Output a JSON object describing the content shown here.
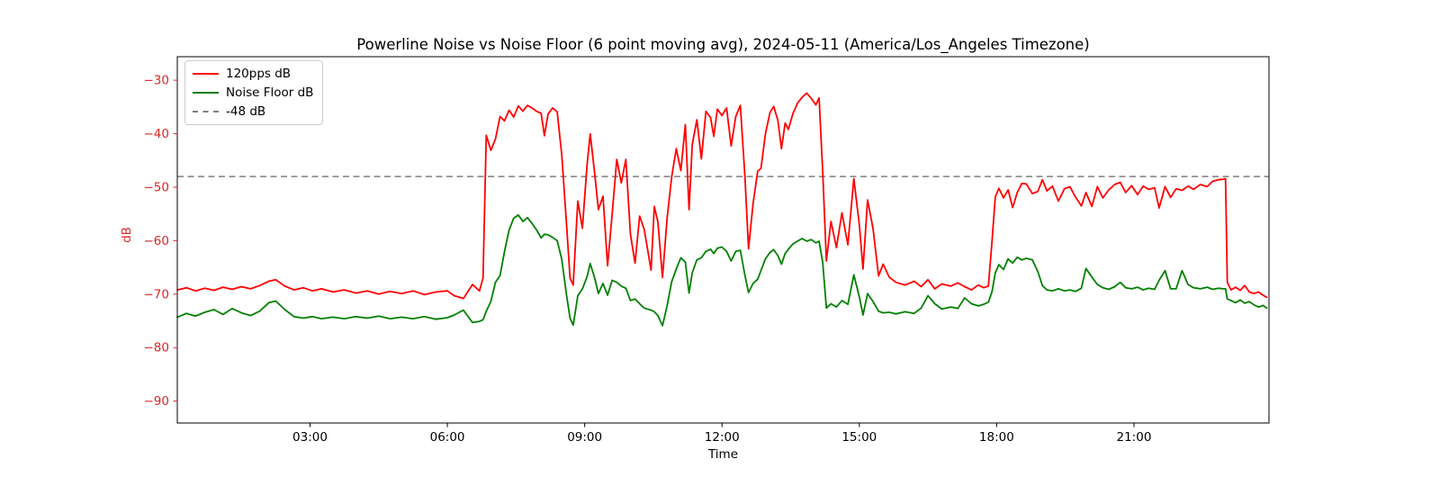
{
  "title": "Powerline Noise vs Noise Floor (6 point moving avg), 2024-05-11 (America/Los_Angeles Timezone)",
  "legend": {
    "items": [
      {
        "label": "120pps dB",
        "color": "#ff0000",
        "line_style": "solid"
      },
      {
        "label": "Noise Floor dB",
        "color": "#008000",
        "line_style": "solid"
      },
      {
        "label": "-48 dB",
        "color": "#7f7f7f",
        "line_style": "dashed"
      }
    ]
  },
  "colors": {
    "red_series": "#ff0000",
    "green_series": "#008000",
    "threshold": "#7f7f7f",
    "y_tick_text": "#d62728",
    "x_tick_text": "#000000",
    "axis": "#000000"
  },
  "chart_data": {
    "type": "line",
    "title": "Powerline Noise vs Noise Floor (6 point moving avg), 2024-05-11 (America/Los_Angeles Timezone)",
    "xlabel": "Time",
    "ylabel": "dB",
    "xlim_hours": [
      0.1,
      23.95
    ],
    "ylim": [
      -94.1,
      -25.6
    ],
    "grid": false,
    "legend_position": "upper left",
    "x_ticks": [
      {
        "hour": 3,
        "label": "03:00"
      },
      {
        "hour": 6,
        "label": "06:00"
      },
      {
        "hour": 9,
        "label": "09:00"
      },
      {
        "hour": 12,
        "label": "12:00"
      },
      {
        "hour": 15,
        "label": "15:00"
      },
      {
        "hour": 18,
        "label": "18:00"
      },
      {
        "hour": 21,
        "label": "21:00"
      }
    ],
    "y_ticks": [
      {
        "value": -30,
        "label": "−30"
      },
      {
        "value": -40,
        "label": "−40"
      },
      {
        "value": -50,
        "label": "−50"
      },
      {
        "value": -60,
        "label": "−60"
      },
      {
        "value": -70,
        "label": "−70"
      },
      {
        "value": -80,
        "label": "−80"
      },
      {
        "value": -90,
        "label": "−90"
      }
    ],
    "threshold": {
      "value": -48,
      "label": "-48 dB",
      "color": "#7f7f7f",
      "style": "dashed"
    },
    "x_hours": [
      0.1,
      0.3,
      0.5,
      0.7,
      0.9,
      1.1,
      1.3,
      1.5,
      1.7,
      1.9,
      2.1,
      2.25,
      2.45,
      2.65,
      2.85,
      3.05,
      3.25,
      3.5,
      3.75,
      4.0,
      4.25,
      4.5,
      4.75,
      5.0,
      5.25,
      5.5,
      5.75,
      6.0,
      6.15,
      6.35,
      6.55,
      6.7,
      6.78,
      6.85,
      6.95,
      7.05,
      7.15,
      7.25,
      7.35,
      7.45,
      7.55,
      7.65,
      7.75,
      7.85,
      7.95,
      8.05,
      8.12,
      8.2,
      8.3,
      8.4,
      8.5,
      8.6,
      8.68,
      8.75,
      8.85,
      8.95,
      9.05,
      9.12,
      9.22,
      9.3,
      9.4,
      9.5,
      9.6,
      9.7,
      9.8,
      9.9,
      10.0,
      10.1,
      10.2,
      10.3,
      10.45,
      10.52,
      10.6,
      10.7,
      10.8,
      10.9,
      11.0,
      11.1,
      11.2,
      11.28,
      11.35,
      11.45,
      11.55,
      11.65,
      11.75,
      11.82,
      11.9,
      12.0,
      12.1,
      12.2,
      12.3,
      12.4,
      12.5,
      12.58,
      12.68,
      12.78,
      12.85,
      12.95,
      13.05,
      13.13,
      13.22,
      13.3,
      13.38,
      13.45,
      13.55,
      13.65,
      13.75,
      13.85,
      13.95,
      14.05,
      14.12,
      14.2,
      14.28,
      14.38,
      14.5,
      14.62,
      14.75,
      14.88,
      15.0,
      15.08,
      15.18,
      15.3,
      15.42,
      15.52,
      15.65,
      15.8,
      16.0,
      16.2,
      16.35,
      16.5,
      16.65,
      16.8,
      17.0,
      17.15,
      17.3,
      17.45,
      17.6,
      17.72,
      17.82,
      17.9,
      17.97,
      18.05,
      18.15,
      18.25,
      18.35,
      18.45,
      18.55,
      18.65,
      18.78,
      18.9,
      19.0,
      19.1,
      19.22,
      19.35,
      19.48,
      19.6,
      19.72,
      19.85,
      19.95,
      20.08,
      20.2,
      20.32,
      20.45,
      20.58,
      20.7,
      20.82,
      20.95,
      21.08,
      21.2,
      21.32,
      21.45,
      21.55,
      21.68,
      21.8,
      21.92,
      22.05,
      22.18,
      22.3,
      22.45,
      22.6,
      22.72,
      22.85,
      22.95,
      23.0,
      23.04,
      23.12,
      23.22,
      23.32,
      23.42,
      23.52,
      23.62,
      23.72,
      23.82,
      23.9
    ],
    "series": [
      {
        "name": "120pps dB",
        "color": "#ff0000",
        "values": [
          -69.2,
          -68.8,
          -69.4,
          -68.9,
          -69.3,
          -68.7,
          -69.1,
          -68.6,
          -69.0,
          -68.4,
          -67.6,
          -67.3,
          -68.5,
          -69.2,
          -68.8,
          -69.4,
          -69.0,
          -69.6,
          -69.2,
          -69.8,
          -69.4,
          -70.0,
          -69.5,
          -69.9,
          -69.4,
          -70.1,
          -69.6,
          -69.4,
          -70.3,
          -70.8,
          -68.2,
          -69.4,
          -67.0,
          -40.3,
          -43.1,
          -41.0,
          -36.8,
          -37.6,
          -35.6,
          -36.9,
          -34.8,
          -35.8,
          -34.7,
          -35.2,
          -35.8,
          -36.2,
          -40.4,
          -36.3,
          -35.2,
          -35.9,
          -44.0,
          -56.5,
          -67.0,
          -68.3,
          -52.6,
          -57.7,
          -46.0,
          -40.0,
          -47.5,
          -54.2,
          -51.7,
          -64.7,
          -55.0,
          -44.8,
          -49.2,
          -44.8,
          -58.8,
          -64.2,
          -55.4,
          -57.9,
          -65.5,
          -53.6,
          -56.5,
          -66.9,
          -55.9,
          -48.1,
          -42.8,
          -46.9,
          -38.3,
          -54.2,
          -42.0,
          -37.4,
          -44.7,
          -35.8,
          -37.0,
          -40.5,
          -35.4,
          -36.6,
          -35.2,
          -42.3,
          -36.8,
          -34.7,
          -48.0,
          -61.5,
          -53.0,
          -47.0,
          -46.5,
          -40.0,
          -36.0,
          -34.9,
          -37.5,
          -42.8,
          -38.0,
          -39.2,
          -36.2,
          -34.3,
          -33.2,
          -32.4,
          -33.4,
          -34.6,
          -33.3,
          -47.0,
          -63.8,
          -56.4,
          -61.3,
          -54.8,
          -60.8,
          -48.4,
          -57.0,
          -65.3,
          -52.4,
          -57.8,
          -66.6,
          -64.4,
          -66.8,
          -67.8,
          -68.3,
          -67.6,
          -68.6,
          -67.3,
          -69.0,
          -68.1,
          -68.5,
          -67.9,
          -68.6,
          -69.2,
          -68.3,
          -68.8,
          -68.5,
          -60.0,
          -51.8,
          -50.2,
          -52.0,
          -50.5,
          -53.8,
          -51.0,
          -49.3,
          -49.4,
          -51.2,
          -50.8,
          -48.6,
          -50.7,
          -49.8,
          -52.6,
          -50.3,
          -49.9,
          -51.8,
          -53.5,
          -51.0,
          -53.6,
          -49.9,
          -52.0,
          -50.5,
          -49.5,
          -49.1,
          -51.0,
          -49.7,
          -51.4,
          -49.8,
          -50.4,
          -50.1,
          -53.9,
          -49.9,
          -51.9,
          -50.3,
          -50.6,
          -49.8,
          -50.4,
          -49.5,
          -49.9,
          -48.9,
          -48.6,
          -48.5,
          -48.4,
          -67.8,
          -69.2,
          -68.7,
          -69.3,
          -68.4,
          -69.6,
          -69.9,
          -69.6,
          -70.2,
          -70.6
        ]
      },
      {
        "name": "Noise Floor dB",
        "color": "#008000",
        "values": [
          -74.3,
          -73.6,
          -74.1,
          -73.4,
          -72.9,
          -73.8,
          -72.7,
          -73.5,
          -74.0,
          -73.2,
          -71.6,
          -71.3,
          -72.9,
          -74.2,
          -74.5,
          -74.2,
          -74.6,
          -74.3,
          -74.6,
          -74.2,
          -74.5,
          -74.1,
          -74.6,
          -74.3,
          -74.6,
          -74.2,
          -74.7,
          -74.4,
          -73.9,
          -73.0,
          -75.3,
          -75.1,
          -74.8,
          -73.2,
          -71.4,
          -67.8,
          -66.5,
          -62.0,
          -58.0,
          -55.8,
          -55.2,
          -56.4,
          -55.7,
          -56.8,
          -58.0,
          -59.5,
          -58.8,
          -58.9,
          -59.4,
          -60.0,
          -63.5,
          -70.0,
          -74.5,
          -75.8,
          -70.3,
          -69.0,
          -66.8,
          -64.3,
          -67.0,
          -69.9,
          -68.0,
          -70.2,
          -67.4,
          -67.8,
          -68.5,
          -68.9,
          -71.2,
          -70.9,
          -71.8,
          -72.6,
          -73.0,
          -73.3,
          -74.0,
          -75.9,
          -72.2,
          -67.7,
          -65.3,
          -63.2,
          -64.0,
          -69.8,
          -66.0,
          -63.6,
          -63.2,
          -62.0,
          -61.6,
          -62.4,
          -61.4,
          -61.2,
          -62.0,
          -63.8,
          -62.0,
          -61.8,
          -66.5,
          -69.7,
          -68.0,
          -67.2,
          -65.6,
          -63.4,
          -62.2,
          -61.7,
          -62.8,
          -64.4,
          -62.4,
          -61.6,
          -60.6,
          -60.1,
          -59.6,
          -60.1,
          -59.8,
          -60.4,
          -60.1,
          -64.0,
          -72.6,
          -71.8,
          -72.4,
          -71.2,
          -71.9,
          -66.4,
          -70.5,
          -73.9,
          -69.9,
          -71.4,
          -73.2,
          -73.5,
          -73.4,
          -73.7,
          -73.3,
          -73.6,
          -72.6,
          -70.3,
          -71.8,
          -72.8,
          -72.4,
          -72.7,
          -70.7,
          -71.8,
          -72.2,
          -71.9,
          -71.5,
          -69.5,
          -66.0,
          -64.5,
          -65.4,
          -63.4,
          -64.2,
          -63.1,
          -63.6,
          -63.3,
          -63.6,
          -65.8,
          -68.4,
          -69.2,
          -69.4,
          -69.0,
          -69.4,
          -69.2,
          -69.5,
          -68.9,
          -65.2,
          -66.8,
          -68.2,
          -68.8,
          -69.1,
          -68.6,
          -67.8,
          -68.8,
          -69.0,
          -68.7,
          -69.2,
          -68.9,
          -69.1,
          -67.4,
          -65.6,
          -69.0,
          -69.0,
          -65.6,
          -68.2,
          -68.8,
          -69.0,
          -68.7,
          -69.1,
          -68.9,
          -69.0,
          -69.0,
          -70.9,
          -71.2,
          -71.6,
          -71.1,
          -71.7,
          -71.4,
          -72.0,
          -72.4,
          -72.1,
          -72.6
        ]
      }
    ]
  }
}
